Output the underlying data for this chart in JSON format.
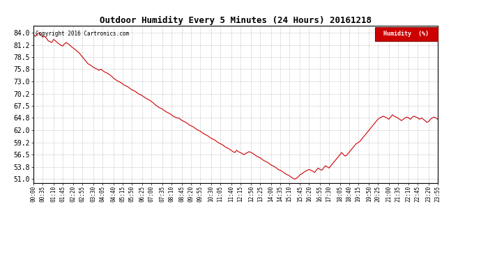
{
  "title": "Outdoor Humidity Every 5 Minutes (24 Hours) 20161218",
  "copyright": "Copyright 2016 Cartronics.com",
  "legend_label": "Humidity  (%)",
  "yticks": [
    51.0,
    53.8,
    56.5,
    59.2,
    62.0,
    64.8,
    67.5,
    70.2,
    73.0,
    75.8,
    78.5,
    81.2,
    84.0
  ],
  "ylim": [
    50.2,
    85.5
  ],
  "line_color": "#cc0000",
  "background_color": "#ffffff",
  "grid_color": "#999999",
  "title_color": "#000000",
  "copyright_color": "#000000",
  "legend_bg": "#cc0000",
  "legend_text_color": "#ffffff",
  "xtick_labels": [
    "00:00",
    "00:35",
    "01:10",
    "01:45",
    "02:20",
    "02:55",
    "03:30",
    "04:05",
    "04:40",
    "05:15",
    "05:50",
    "06:25",
    "07:00",
    "07:35",
    "08:10",
    "08:45",
    "09:20",
    "09:55",
    "10:30",
    "11:05",
    "11:40",
    "12:15",
    "12:50",
    "13:25",
    "14:00",
    "14:35",
    "15:10",
    "15:45",
    "16:20",
    "16:55",
    "17:30",
    "18:05",
    "18:40",
    "19:15",
    "19:50",
    "20:25",
    "21:00",
    "21:35",
    "22:10",
    "22:45",
    "23:20",
    "23:55"
  ],
  "humidity_values": [
    83.5,
    83.2,
    83.8,
    84.0,
    83.5,
    83.0,
    83.2,
    82.8,
    82.2,
    82.0,
    81.8,
    82.5,
    82.2,
    81.8,
    81.5,
    81.2,
    81.0,
    81.5,
    81.8,
    81.5,
    81.2,
    80.8,
    80.5,
    80.2,
    79.8,
    79.5,
    79.0,
    78.5,
    78.0,
    77.5,
    77.0,
    76.8,
    76.5,
    76.2,
    76.0,
    75.8,
    75.5,
    75.8,
    75.5,
    75.2,
    75.0,
    74.8,
    74.5,
    74.2,
    73.8,
    73.5,
    73.2,
    73.0,
    72.8,
    72.5,
    72.2,
    72.0,
    71.8,
    71.5,
    71.2,
    71.0,
    70.8,
    70.5,
    70.2,
    70.0,
    69.8,
    69.5,
    69.2,
    69.0,
    68.8,
    68.5,
    68.2,
    67.8,
    67.5,
    67.2,
    67.0,
    66.8,
    66.5,
    66.2,
    66.0,
    65.8,
    65.5,
    65.2,
    65.0,
    64.8,
    64.8,
    64.5,
    64.2,
    64.0,
    63.8,
    63.5,
    63.2,
    63.0,
    62.8,
    62.5,
    62.2,
    62.0,
    61.8,
    61.5,
    61.2,
    61.0,
    60.8,
    60.5,
    60.2,
    60.0,
    59.8,
    59.5,
    59.2,
    59.0,
    58.8,
    58.5,
    58.2,
    58.0,
    57.8,
    57.5,
    57.2,
    57.0,
    57.5,
    57.2,
    57.0,
    56.8,
    56.5,
    56.8,
    57.0,
    57.2,
    57.0,
    56.8,
    56.5,
    56.2,
    56.0,
    55.8,
    55.5,
    55.2,
    55.0,
    54.8,
    54.5,
    54.2,
    54.0,
    53.8,
    53.5,
    53.2,
    53.0,
    52.8,
    52.5,
    52.2,
    52.0,
    51.8,
    51.5,
    51.2,
    51.0,
    51.2,
    51.5,
    52.0,
    52.2,
    52.5,
    52.8,
    53.0,
    53.2,
    53.0,
    52.8,
    52.5,
    53.0,
    53.5,
    53.2,
    53.0,
    53.5,
    54.0,
    53.8,
    53.5,
    54.0,
    54.5,
    55.0,
    55.5,
    56.0,
    56.5,
    57.0,
    56.5,
    56.2,
    56.5,
    57.0,
    57.5,
    58.0,
    58.5,
    59.0,
    59.2,
    59.5,
    60.0,
    60.5,
    61.0,
    61.5,
    62.0,
    62.5,
    63.0,
    63.5,
    64.0,
    64.5,
    64.8,
    65.0,
    65.2,
    65.0,
    64.8,
    64.5,
    65.0,
    65.5,
    65.2,
    65.0,
    64.8,
    64.5,
    64.2,
    64.5,
    64.8,
    65.0,
    64.8,
    64.5,
    65.0,
    65.2,
    65.0,
    64.8,
    64.5,
    64.8,
    64.5,
    64.2,
    63.8,
    64.0,
    64.5,
    64.8,
    65.0,
    64.8,
    64.5
  ]
}
